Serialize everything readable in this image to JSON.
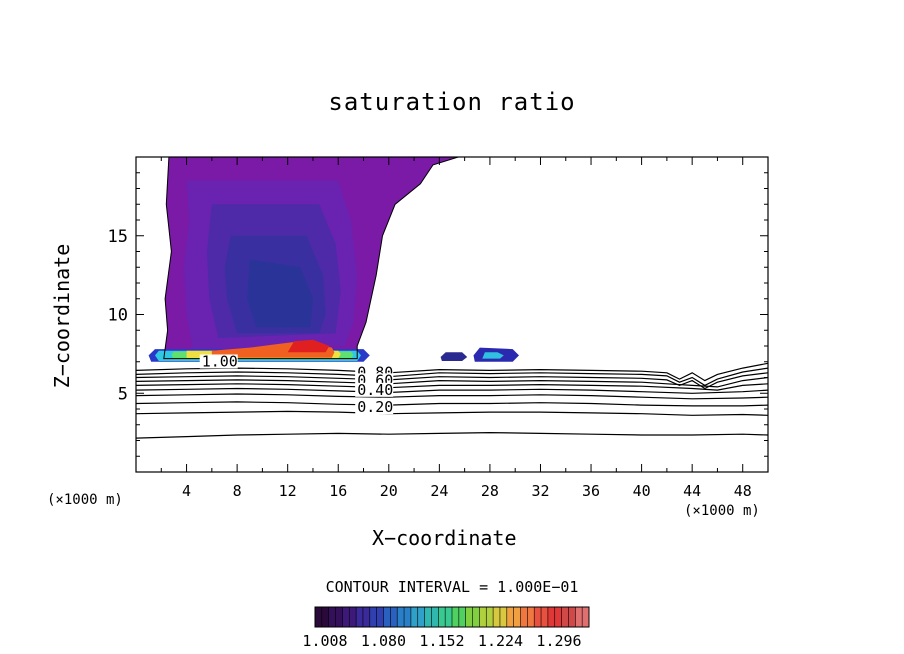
{
  "chart_data": {
    "type": "contour",
    "title": "saturation ratio",
    "xlabel": "X−coordinate",
    "ylabel": "Z−coordinate",
    "x_unit_left": "(×1000 m)",
    "x_unit_right": "(×1000 m)",
    "xlim": [
      0,
      50
    ],
    "ylim": [
      0,
      20
    ],
    "x_ticks": [
      4,
      8,
      12,
      16,
      20,
      24,
      28,
      32,
      36,
      40,
      44,
      48
    ],
    "x_tick_labels": [
      "4",
      "8",
      "12",
      "16",
      "20",
      "24",
      "28",
      "32",
      "36",
      "40",
      "44",
      "48"
    ],
    "y_ticks": [
      5,
      10,
      15
    ],
    "y_tick_labels": [
      "5",
      "10",
      "15"
    ],
    "contour_interval_text": "CONTOUR INTERVAL = 1.000E−01",
    "line_contour_labels": [
      {
        "text": "1.00",
        "x": 5.2,
        "z": 6.7
      },
      {
        "text": "0.80",
        "x": 17.5,
        "z": 6.0
      },
      {
        "text": "0.60",
        "x": 17.5,
        "z": 5.5
      },
      {
        "text": "0.40",
        "x": 17.5,
        "z": 4.9
      },
      {
        "text": "0.20",
        "x": 17.5,
        "z": 3.8
      }
    ],
    "line_contours": [
      {
        "level": 1.0,
        "points": [
          [
            0,
            6.45
          ],
          [
            4,
            6.55
          ],
          [
            8,
            6.6
          ],
          [
            12,
            6.55
          ],
          [
            16,
            6.45
          ],
          [
            20,
            6.3
          ],
          [
            24,
            6.5
          ],
          [
            28,
            6.45
          ],
          [
            32,
            6.5
          ],
          [
            36,
            6.45
          ],
          [
            40,
            6.4
          ],
          [
            42,
            6.3
          ],
          [
            43,
            5.9
          ],
          [
            44,
            6.3
          ],
          [
            45,
            5.8
          ],
          [
            46,
            6.2
          ],
          [
            48,
            6.6
          ],
          [
            50,
            6.9
          ]
        ]
      },
      {
        "level": 0.9,
        "points": [
          [
            0,
            6.2
          ],
          [
            4,
            6.3
          ],
          [
            8,
            6.35
          ],
          [
            12,
            6.3
          ],
          [
            16,
            6.2
          ],
          [
            20,
            6.05
          ],
          [
            24,
            6.3
          ],
          [
            28,
            6.25
          ],
          [
            32,
            6.3
          ],
          [
            36,
            6.25
          ],
          [
            40,
            6.2
          ],
          [
            42,
            6.1
          ],
          [
            43,
            5.7
          ],
          [
            44,
            6.0
          ],
          [
            45,
            5.5
          ],
          [
            46,
            5.9
          ],
          [
            48,
            6.35
          ],
          [
            50,
            6.6
          ]
        ]
      },
      {
        "level": 0.8,
        "points": [
          [
            0,
            6.0
          ],
          [
            4,
            6.05
          ],
          [
            8,
            6.1
          ],
          [
            12,
            6.05
          ],
          [
            16,
            5.95
          ],
          [
            20,
            5.85
          ],
          [
            24,
            6.05
          ],
          [
            28,
            6.0
          ],
          [
            32,
            6.05
          ],
          [
            36,
            6.0
          ],
          [
            40,
            5.95
          ],
          [
            42,
            5.85
          ],
          [
            43,
            5.5
          ],
          [
            44,
            5.8
          ],
          [
            45,
            5.3
          ],
          [
            46,
            5.7
          ],
          [
            48,
            6.1
          ],
          [
            50,
            6.3
          ]
        ]
      },
      {
        "level": 0.7,
        "points": [
          [
            0,
            5.75
          ],
          [
            4,
            5.8
          ],
          [
            8,
            5.85
          ],
          [
            12,
            5.8
          ],
          [
            16,
            5.7
          ],
          [
            20,
            5.6
          ],
          [
            24,
            5.8
          ],
          [
            28,
            5.75
          ],
          [
            32,
            5.8
          ],
          [
            36,
            5.75
          ],
          [
            40,
            5.7
          ],
          [
            42,
            5.6
          ],
          [
            44,
            5.5
          ],
          [
            46,
            5.4
          ],
          [
            48,
            5.8
          ],
          [
            50,
            6.0
          ]
        ]
      },
      {
        "level": 0.6,
        "points": [
          [
            0,
            5.5
          ],
          [
            4,
            5.55
          ],
          [
            8,
            5.6
          ],
          [
            12,
            5.55
          ],
          [
            16,
            5.45
          ],
          [
            20,
            5.35
          ],
          [
            24,
            5.5
          ],
          [
            28,
            5.5
          ],
          [
            32,
            5.55
          ],
          [
            36,
            5.5
          ],
          [
            40,
            5.45
          ],
          [
            44,
            5.3
          ],
          [
            46,
            5.2
          ],
          [
            48,
            5.5
          ],
          [
            50,
            5.6
          ]
        ]
      },
      {
        "level": 0.5,
        "points": [
          [
            0,
            5.2
          ],
          [
            4,
            5.25
          ],
          [
            8,
            5.3
          ],
          [
            12,
            5.25
          ],
          [
            16,
            5.15
          ],
          [
            20,
            5.05
          ],
          [
            24,
            5.2
          ],
          [
            28,
            5.2
          ],
          [
            32,
            5.25
          ],
          [
            36,
            5.2
          ],
          [
            40,
            5.1
          ],
          [
            44,
            5.0
          ],
          [
            48,
            5.1
          ],
          [
            50,
            5.2
          ]
        ]
      },
      {
        "level": 0.4,
        "points": [
          [
            0,
            4.85
          ],
          [
            4,
            4.9
          ],
          [
            8,
            4.95
          ],
          [
            12,
            4.9
          ],
          [
            16,
            4.8
          ],
          [
            20,
            4.75
          ],
          [
            24,
            4.85
          ],
          [
            28,
            4.85
          ],
          [
            32,
            4.9
          ],
          [
            36,
            4.85
          ],
          [
            40,
            4.75
          ],
          [
            44,
            4.65
          ],
          [
            48,
            4.7
          ],
          [
            50,
            4.75
          ]
        ]
      },
      {
        "level": 0.3,
        "points": [
          [
            0,
            4.35
          ],
          [
            4,
            4.4
          ],
          [
            8,
            4.45
          ],
          [
            12,
            4.4
          ],
          [
            16,
            4.3
          ],
          [
            20,
            4.25
          ],
          [
            24,
            4.35
          ],
          [
            28,
            4.35
          ],
          [
            32,
            4.4
          ],
          [
            36,
            4.35
          ],
          [
            40,
            4.25
          ],
          [
            44,
            4.2
          ],
          [
            48,
            4.2
          ],
          [
            50,
            4.25
          ]
        ]
      },
      {
        "level": 0.2,
        "points": [
          [
            0,
            3.7
          ],
          [
            4,
            3.75
          ],
          [
            8,
            3.8
          ],
          [
            12,
            3.85
          ],
          [
            16,
            3.8
          ],
          [
            20,
            3.7
          ],
          [
            24,
            3.75
          ],
          [
            28,
            3.8
          ],
          [
            32,
            3.8
          ],
          [
            36,
            3.75
          ],
          [
            40,
            3.7
          ],
          [
            44,
            3.6
          ],
          [
            48,
            3.65
          ],
          [
            50,
            3.6
          ]
        ]
      },
      {
        "level": 0.1,
        "points": [
          [
            0,
            2.15
          ],
          [
            4,
            2.25
          ],
          [
            8,
            2.35
          ],
          [
            12,
            2.4
          ],
          [
            16,
            2.45
          ],
          [
            20,
            2.4
          ],
          [
            24,
            2.45
          ],
          [
            28,
            2.5
          ],
          [
            32,
            2.45
          ],
          [
            36,
            2.4
          ],
          [
            40,
            2.35
          ],
          [
            44,
            2.35
          ],
          [
            48,
            2.4
          ],
          [
            50,
            2.35
          ]
        ]
      }
    ],
    "filled_regions": [
      {
        "level": 1.008,
        "color": "#7a1aa6",
        "points": [
          [
            2.5,
            20
          ],
          [
            25.5,
            20
          ],
          [
            23.5,
            19.5
          ],
          [
            22.5,
            18.3
          ],
          [
            20.5,
            17.0
          ],
          [
            19.5,
            15.0
          ],
          [
            19.0,
            12.5
          ],
          [
            18.2,
            9.5
          ],
          [
            17.5,
            8.0
          ],
          [
            17.5,
            7.2
          ],
          [
            2.2,
            7.2
          ],
          [
            2.5,
            9.0
          ],
          [
            2.3,
            11.0
          ],
          [
            2.8,
            14.0
          ],
          [
            2.4,
            17.0
          ],
          [
            2.6,
            20
          ]
        ]
      },
      {
        "level": 1.03,
        "color": "#6a23b0",
        "points": [
          [
            4.0,
            18.5
          ],
          [
            16.0,
            18.5
          ],
          [
            17.0,
            16.0
          ],
          [
            17.5,
            12.5
          ],
          [
            17.2,
            9.5
          ],
          [
            16.5,
            8.0
          ],
          [
            4.5,
            7.8
          ],
          [
            4.0,
            10.0
          ],
          [
            3.8,
            13.0
          ],
          [
            4.2,
            16.0
          ]
        ]
      },
      {
        "level": 1.06,
        "color": "#4e2aa8",
        "points": [
          [
            6.0,
            17.0
          ],
          [
            14.5,
            17.0
          ],
          [
            15.8,
            14.5
          ],
          [
            16.2,
            11.5
          ],
          [
            15.8,
            8.8
          ],
          [
            6.5,
            8.5
          ],
          [
            5.8,
            11.0
          ],
          [
            5.6,
            14.0
          ]
        ]
      },
      {
        "level": 1.09,
        "color": "#3a2fa0",
        "points": [
          [
            7.5,
            15.0
          ],
          [
            13.5,
            15.0
          ],
          [
            14.8,
            12.5
          ],
          [
            15.0,
            10.0
          ],
          [
            14.5,
            8.8
          ],
          [
            8.0,
            8.8
          ],
          [
            7.2,
            11.0
          ],
          [
            7.0,
            13.0
          ]
        ]
      },
      {
        "level": 1.12,
        "color": "#2a3398",
        "points": [
          [
            9.0,
            13.5
          ],
          [
            13.0,
            13.0
          ],
          [
            14.0,
            11.0
          ],
          [
            13.8,
            9.2
          ],
          [
            9.5,
            9.2
          ],
          [
            8.8,
            11.0
          ]
        ]
      },
      {
        "level": 1.0,
        "color": "#2838c8",
        "points": [
          [
            1.2,
            7.0
          ],
          [
            18.0,
            7.0
          ],
          [
            18.5,
            7.4
          ],
          [
            18.0,
            7.8
          ],
          [
            1.5,
            7.8
          ],
          [
            1.0,
            7.4
          ]
        ]
      },
      {
        "level": 1.2,
        "color": "#30c8e0",
        "points": [
          [
            1.8,
            7.05
          ],
          [
            17.5,
            7.05
          ],
          [
            17.8,
            7.4
          ],
          [
            17.5,
            7.7
          ],
          [
            1.8,
            7.7
          ],
          [
            1.5,
            7.4
          ]
        ]
      },
      {
        "level": 1.15,
        "color": "#60e070",
        "points": [
          [
            3.0,
            7.15
          ],
          [
            17.0,
            7.15
          ],
          [
            17.2,
            7.45
          ],
          [
            17.0,
            7.65
          ],
          [
            3.0,
            7.65
          ],
          [
            2.8,
            7.45
          ]
        ]
      },
      {
        "level": 1.22,
        "color": "#f0e040",
        "points": [
          [
            4.0,
            7.2
          ],
          [
            16.0,
            7.2
          ],
          [
            16.2,
            7.5
          ],
          [
            16.0,
            7.7
          ],
          [
            4.0,
            7.7
          ]
        ]
      },
      {
        "level": 1.27,
        "color": "#f06020",
        "points": [
          [
            6.0,
            7.25
          ],
          [
            15.5,
            7.25
          ],
          [
            15.7,
            7.6
          ],
          [
            15.5,
            7.9
          ],
          [
            13.0,
            8.3
          ],
          [
            11.0,
            8.1
          ],
          [
            9.0,
            7.9
          ],
          [
            6.0,
            7.7
          ]
        ]
      },
      {
        "level": 1.296,
        "color": "#e02020",
        "points": [
          [
            12.0,
            7.6
          ],
          [
            15.0,
            7.6
          ],
          [
            15.3,
            8.0
          ],
          [
            14.0,
            8.4
          ],
          [
            12.5,
            8.3
          ]
        ]
      },
      {
        "level": 1.04,
        "color": "#2a2a90",
        "points": [
          [
            24.2,
            7.05
          ],
          [
            25.8,
            7.05
          ],
          [
            26.2,
            7.3
          ],
          [
            25.8,
            7.6
          ],
          [
            24.5,
            7.6
          ],
          [
            24.1,
            7.3
          ]
        ]
      },
      {
        "level": 1.04,
        "color": "#2a2ab0",
        "points": [
          [
            26.8,
            7.0
          ],
          [
            29.8,
            7.0
          ],
          [
            30.3,
            7.4
          ],
          [
            29.8,
            7.8
          ],
          [
            27.2,
            7.9
          ],
          [
            26.7,
            7.4
          ]
        ]
      },
      {
        "level": 1.1,
        "color": "#30c0e0",
        "points": [
          [
            27.4,
            7.2
          ],
          [
            28.8,
            7.2
          ],
          [
            29.1,
            7.4
          ],
          [
            28.6,
            7.6
          ],
          [
            27.6,
            7.6
          ]
        ]
      }
    ],
    "color_bar": {
      "colors": [
        "#2a0a3a",
        "#35105a",
        "#3d1a7a",
        "#3a2a9a",
        "#3040b0",
        "#2a60c0",
        "#2a80c8",
        "#30a0c8",
        "#30b8b0",
        "#38c890",
        "#50d060",
        "#80d040",
        "#b0d040",
        "#d8c840",
        "#f0a040",
        "#f07840",
        "#e85040",
        "#e03838",
        "#d04848",
        "#e07070"
      ],
      "labels": [
        "1.008",
        "1.080",
        "1.152",
        "1.224",
        "1.296"
      ]
    }
  }
}
